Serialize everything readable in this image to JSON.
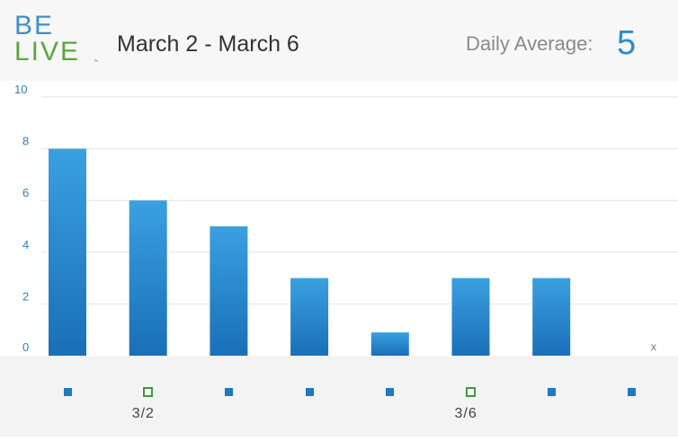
{
  "header": {
    "logo_top": "BE",
    "logo_bottom": "LIVE",
    "logo_tm": "™",
    "date_range": "March 2 - March 6",
    "average_label": "Daily Average:",
    "average_value": "5"
  },
  "colors": {
    "bar_top": "#3aa0e0",
    "bar_bottom": "#1a6fb8",
    "marker_filled": "#1f78c0",
    "marker_hollow": "#3f9a3a",
    "axis_text": "#2a80c0",
    "gridline": "#e3e3e3"
  },
  "chart_data": {
    "type": "bar",
    "ylim": [
      0,
      10
    ],
    "yticks": [
      0,
      2,
      4,
      6,
      8,
      10
    ],
    "values": [
      8,
      6,
      5,
      3,
      0.9,
      3,
      3,
      null
    ],
    "missing_marker": "x",
    "grid": true
  },
  "days": [
    {
      "marker": "filled",
      "label": ""
    },
    {
      "marker": "hollow",
      "label": "3/2"
    },
    {
      "marker": "filled",
      "label": ""
    },
    {
      "marker": "filled",
      "label": ""
    },
    {
      "marker": "filled",
      "label": ""
    },
    {
      "marker": "hollow",
      "label": "3/6"
    },
    {
      "marker": "filled",
      "label": ""
    },
    {
      "marker": "filled",
      "label": ""
    }
  ]
}
